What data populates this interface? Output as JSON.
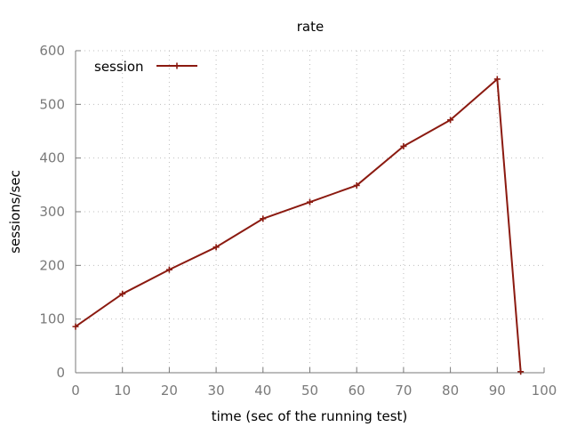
{
  "chart_data": {
    "type": "line",
    "title": "rate",
    "xlabel": "time (sec of the running test)",
    "ylabel": "sessions/sec",
    "xlim": [
      0,
      100
    ],
    "ylim": [
      0,
      600
    ],
    "xticks": [
      0,
      10,
      20,
      30,
      40,
      50,
      60,
      70,
      80,
      90,
      100
    ],
    "yticks": [
      0,
      100,
      200,
      300,
      400,
      500,
      600
    ],
    "grid": true,
    "legend_position": "top-left",
    "series": [
      {
        "name": "session",
        "color": "#8b1a10",
        "marker": "plus",
        "x": [
          0,
          10,
          20,
          30,
          40,
          50,
          60,
          70,
          80,
          90,
          95
        ],
        "y": [
          86,
          147,
          192,
          234,
          287,
          318,
          349,
          422,
          471,
          547,
          2
        ]
      }
    ]
  }
}
